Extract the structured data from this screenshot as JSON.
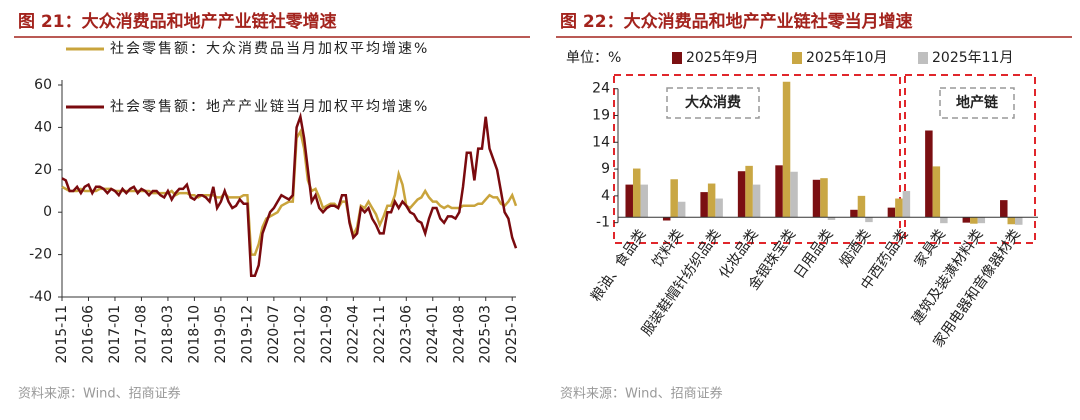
{
  "chart_data": [
    {
      "type": "line",
      "title": "图 21：大众消费品和地产产业链社零增速",
      "source": "资料来源：Wind、招商证券",
      "x": [
        "2015-11",
        "2015-12",
        "2016-01",
        "2016-02",
        "2016-03",
        "2016-04",
        "2016-05",
        "2016-06",
        "2016-07",
        "2016-08",
        "2016-09",
        "2016-10",
        "2016-11",
        "2016-12",
        "2017-01",
        "2017-02",
        "2017-03",
        "2017-04",
        "2017-05",
        "2017-06",
        "2017-07",
        "2017-08",
        "2017-09",
        "2017-10",
        "2017-11",
        "2017-12",
        "2018-01",
        "2018-02",
        "2018-03",
        "2018-04",
        "2018-05",
        "2018-06",
        "2018-07",
        "2018-08",
        "2018-09",
        "2018-10",
        "2018-11",
        "2018-12",
        "2019-01",
        "2019-02",
        "2019-03",
        "2019-04",
        "2019-05",
        "2019-06",
        "2019-07",
        "2019-08",
        "2019-09",
        "2019-10",
        "2019-11",
        "2019-12",
        "2020-01",
        "2020-02",
        "2020-03",
        "2020-04",
        "2020-05",
        "2020-06",
        "2020-07",
        "2020-08",
        "2020-09",
        "2020-10",
        "2020-11",
        "2020-12",
        "2021-01",
        "2021-02",
        "2021-03",
        "2021-04",
        "2021-05",
        "2021-06",
        "2021-07",
        "2021-08",
        "2021-09",
        "2021-10",
        "2021-11",
        "2021-12",
        "2022-01",
        "2022-02",
        "2022-03",
        "2022-04",
        "2022-05",
        "2022-06",
        "2022-07",
        "2022-08",
        "2022-09",
        "2022-10",
        "2022-11",
        "2022-12",
        "2023-01",
        "2023-02",
        "2023-03",
        "2023-04",
        "2023-05",
        "2023-06",
        "2023-07",
        "2023-08",
        "2023-09",
        "2023-10",
        "2023-11",
        "2023-12",
        "2024-01",
        "2024-02",
        "2024-03",
        "2024-04",
        "2024-05",
        "2024-06",
        "2024-07",
        "2024-08",
        "2024-09",
        "2024-10",
        "2024-11",
        "2024-12",
        "2025-01",
        "2025-02",
        "2025-03",
        "2025-04",
        "2025-05",
        "2025-06",
        "2025-07",
        "2025-08",
        "2025-09",
        "2025-10",
        "2025-11"
      ],
      "xticks": [
        "2015-11",
        "2016-06",
        "2017-01",
        "2017-08",
        "2018-03",
        "2018-10",
        "2019-05",
        "2019-12",
        "2020-07",
        "2021-02",
        "2021-09",
        "2022-04",
        "2022-11",
        "2023-06",
        "2024-01",
        "2024-08",
        "2025-03",
        "2025-10"
      ],
      "ylim": [
        -40,
        60
      ],
      "yticks": [
        -40,
        -20,
        0,
        20,
        40,
        60
      ],
      "series": [
        {
          "name": "社会零售额：大众消费品当月加权平均增速%",
          "color": "#c9a43c",
          "values": [
            12,
            11,
            10,
            10,
            10,
            11,
            10,
            10,
            10,
            10,
            11,
            11,
            11,
            11,
            10,
            10,
            10,
            10,
            10,
            10,
            10,
            10,
            10,
            10,
            9,
            9,
            9,
            9,
            9,
            10,
            8,
            9,
            9,
            9,
            8,
            8,
            7,
            8,
            8,
            8,
            8,
            7,
            7,
            9,
            7,
            7,
            7,
            7,
            8,
            8,
            -20,
            -20,
            -15,
            -7,
            -3,
            -2,
            -1,
            0,
            3,
            4,
            5,
            5,
            35,
            38,
            30,
            15,
            10,
            11,
            7,
            2,
            3,
            4,
            4,
            2,
            5,
            5,
            -4,
            -11,
            -7,
            3,
            2,
            5,
            2,
            -1,
            -6,
            -2,
            3,
            3,
            8,
            18,
            13,
            3,
            2,
            4,
            6,
            7,
            10,
            7,
            5,
            5,
            3,
            2,
            3,
            2,
            2,
            2,
            3,
            3,
            3,
            3,
            4,
            4,
            6,
            8,
            7,
            7,
            4,
            3,
            5,
            8,
            3
          ]
        },
        {
          "name": "社会零售额：地产产业链当月加权平均增速%",
          "color": "#7a0a0e",
          "values": [
            16,
            15,
            10,
            10,
            12,
            9,
            12,
            13,
            9,
            12,
            12,
            11,
            9,
            11,
            10,
            8,
            11,
            9,
            11,
            12,
            9,
            11,
            10,
            8,
            10,
            10,
            8,
            7,
            10,
            6,
            9,
            11,
            11,
            13,
            7,
            6,
            8,
            8,
            7,
            5,
            12,
            2,
            5,
            10,
            5,
            2,
            3,
            6,
            4,
            4,
            -30,
            -30,
            -25,
            -10,
            -5,
            0,
            2,
            5,
            8,
            7,
            6,
            8,
            40,
            45,
            35,
            20,
            5,
            8,
            2,
            0,
            2,
            3,
            3,
            2,
            8,
            8,
            -5,
            -12,
            -10,
            2,
            0,
            2,
            -3,
            -6,
            -10,
            -10,
            0,
            0,
            5,
            2,
            5,
            3,
            0,
            -1,
            -4,
            -5,
            -10,
            -3,
            2,
            2,
            -3,
            -5,
            -2,
            -2,
            -3,
            0,
            12,
            28,
            28,
            15,
            30,
            30,
            45,
            30,
            25,
            20,
            10,
            0,
            -3,
            -12,
            -17
          ]
        }
      ]
    },
    {
      "type": "bar",
      "title": "图 22：大众消费品和地产产业链社零当月增速",
      "source": "资料来源：Wind、招商证券",
      "unit": "单位：%",
      "annotations": [
        "大众消费",
        "地产链"
      ],
      "categories": [
        "粮油、食品类",
        "饮料类",
        "服装鞋帽针纺织品类",
        "化妆品类",
        "金银珠宝类",
        "日用品类",
        "烟酒类",
        "中西药品类",
        "家具类",
        "建筑及装潢材料类",
        "家用电器和音像器材类"
      ],
      "ylim": [
        -2,
        26
      ],
      "yticks": [
        -1,
        4,
        9,
        14,
        19,
        24
      ],
      "series": [
        {
          "name": "2025年9月",
          "color": "#7b0f12",
          "values": [
            6.1,
            -0.6,
            4.7,
            8.6,
            9.7,
            7.0,
            1.4,
            1.8,
            16.2,
            -1.0,
            3.2
          ]
        },
        {
          "name": "2025年10月",
          "color": "#c9a744",
          "values": [
            9.1,
            7.1,
            6.3,
            9.6,
            25.3,
            7.3,
            4.0,
            3.5,
            9.5,
            -1.2,
            -1.3
          ]
        },
        {
          "name": "2025年11月",
          "color": "#bfbfbf",
          "values": [
            6.1,
            2.9,
            3.5,
            6.1,
            8.5,
            -0.5,
            -0.9,
            4.9,
            -1.1,
            -1.1,
            -1.4
          ]
        }
      ]
    }
  ]
}
